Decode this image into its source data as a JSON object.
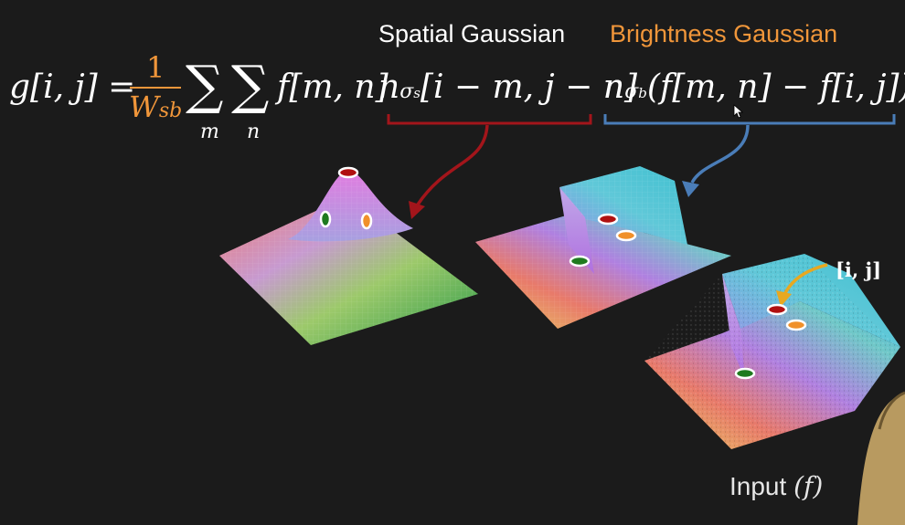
{
  "labels": {
    "spatial": "Spatial Gaussian",
    "brightness": "Brightness Gaussian",
    "input": "Input",
    "input_symbol": "(f)",
    "ij": "[i, j]"
  },
  "equation": {
    "lhs": "g[i, j] =",
    "frac_numer": "1",
    "frac_denom": "W",
    "frac_denom_sub": "sb",
    "sum_symbol": "∑",
    "sum_index_m": "m",
    "sum_index_n": "n",
    "f_mn": "f[m, n]",
    "n_symbol": "n",
    "sigma": "σ",
    "sigma_s_sub": "s",
    "sigma_b_sub": "b",
    "spatial_arg": "[i − m, j − n]",
    "brightness_arg": "(f[m, n] − f[i, j])"
  },
  "colors": {
    "background": "#1b1b1b",
    "orange": "#f0963a",
    "red_brace": "#a3151b",
    "blue_brace": "#4a7db8",
    "marker_red": "#b01010",
    "marker_orange": "#f0902a",
    "marker_green": "#1f7a1f",
    "arrow_yellow": "#e8a820"
  }
}
